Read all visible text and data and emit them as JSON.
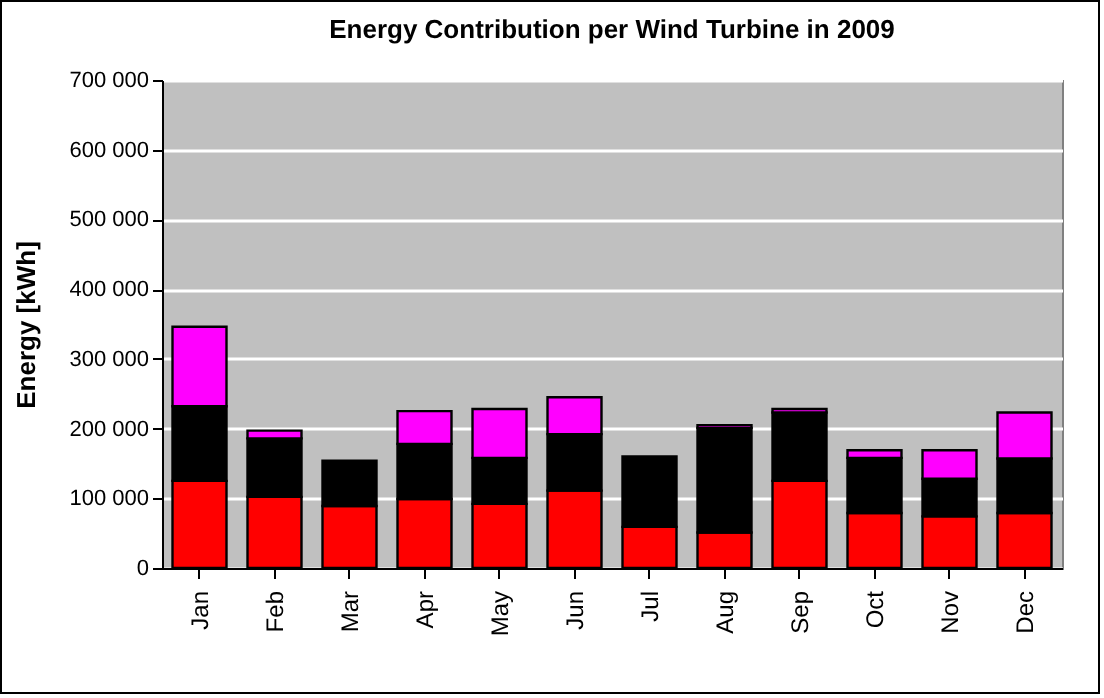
{
  "chart_data": {
    "type": "bar",
    "title": "Energy Contribution per Wind Turbine in 2009",
    "ylabel": "Energy [kWh]",
    "stacked": true,
    "grid": "y",
    "legend": false,
    "categories": [
      "Jan",
      "Feb",
      "Mar",
      "Apr",
      "May",
      "Jun",
      "Jul",
      "Aug",
      "Sep",
      "Oct",
      "Nov",
      "Dec"
    ],
    "series": [
      {
        "color": "#ff0000",
        "values": [
          125000,
          102000,
          89000,
          99000,
          92000,
          111000,
          59000,
          51000,
          125000,
          79000,
          74000,
          79000
        ]
      },
      {
        "color": "#000000",
        "values": [
          107000,
          84000,
          65000,
          79000,
          66000,
          81000,
          101000,
          150000,
          98000,
          79000,
          54000,
          78000
        ]
      },
      {
        "color": "#ff00ff",
        "values": [
          114000,
          11000,
          null,
          47000,
          70000,
          53000,
          null,
          4000,
          5000,
          11000,
          41000,
          66000
        ]
      }
    ],
    "ylim": [
      0,
      700000
    ],
    "yticks": [
      0,
      {
        "value": 100000,
        "label": "100 000"
      },
      {
        "value": 200000,
        "label": "200 000"
      },
      {
        "value": 300000,
        "label": "300 000"
      },
      {
        "value": 400000,
        "label": "400 000"
      },
      {
        "value": 500000,
        "label": "500 000"
      },
      {
        "value": 600000,
        "label": "600 000"
      },
      {
        "value": 700000,
        "label": "700 000"
      }
    ]
  }
}
